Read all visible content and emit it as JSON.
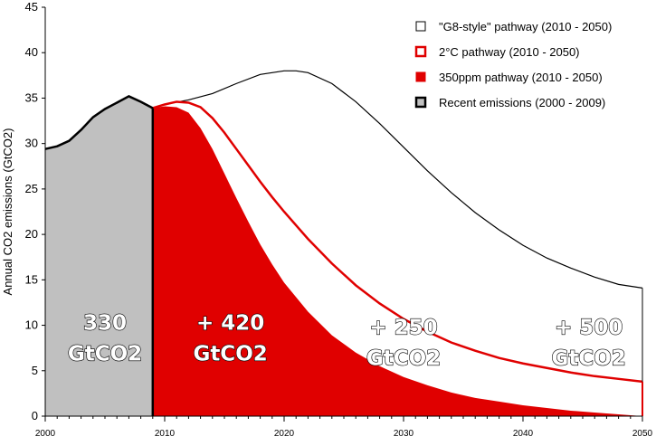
{
  "chart_data": {
    "type": "area",
    "ylabel": "Annual CO2 emissions (GtCO2)",
    "xlabel": "",
    "xlim": [
      2000,
      2050
    ],
    "ylim": [
      0,
      45
    ],
    "y_ticks": [
      0,
      5,
      10,
      15,
      20,
      25,
      30,
      35,
      40,
      45
    ],
    "x_ticks": [
      2000,
      2010,
      2020,
      2030,
      2040,
      2050
    ],
    "y_tick_labels": [
      "0",
      "5",
      "10",
      "15",
      "20",
      "25",
      "30",
      "35",
      "40",
      "45"
    ],
    "x_tick_labels": [
      "2000",
      "2010",
      "2020",
      "2030",
      "2040",
      "2050"
    ],
    "legend_position": "top-right",
    "series": [
      {
        "name": "\"G8-style\" pathway (2010 - 2050)",
        "color": "#000000",
        "fill": "none",
        "x": [
          2009,
          2010,
          2012,
          2014,
          2016,
          2018,
          2020,
          2021,
          2022,
          2024,
          2026,
          2028,
          2030,
          2032,
          2034,
          2036,
          2038,
          2040,
          2042,
          2044,
          2046,
          2048,
          2050
        ],
        "values": [
          33.9,
          34.3,
          34.8,
          35.5,
          36.6,
          37.6,
          38.0,
          38.0,
          37.8,
          36.6,
          34.6,
          32.2,
          29.6,
          27.0,
          24.6,
          22.4,
          20.5,
          18.8,
          17.4,
          16.3,
          15.3,
          14.5,
          14.1
        ]
      },
      {
        "name": "2°C pathway (2010 - 2050)",
        "color": "#e00000",
        "fill": "#ffffff",
        "x": [
          2009,
          2010,
          2011,
          2012,
          2013,
          2014,
          2015,
          2016,
          2017,
          2018,
          2019,
          2020,
          2022,
          2024,
          2026,
          2028,
          2030,
          2032,
          2034,
          2036,
          2038,
          2040,
          2042,
          2044,
          2046,
          2048,
          2050
        ],
        "values": [
          33.9,
          34.3,
          34.6,
          34.5,
          34.0,
          32.8,
          31.2,
          29.4,
          27.6,
          25.8,
          24.1,
          22.5,
          19.5,
          16.8,
          14.4,
          12.4,
          10.7,
          9.3,
          8.1,
          7.2,
          6.4,
          5.8,
          5.3,
          4.8,
          4.4,
          4.1,
          3.8
        ]
      },
      {
        "name": "350ppm pathway (2010 - 2050)",
        "color": "#e00000",
        "fill": "#e00000",
        "x": [
          2009,
          2010,
          2011,
          2012,
          2013,
          2014,
          2015,
          2016,
          2017,
          2018,
          2019,
          2020,
          2022,
          2024,
          2026,
          2028,
          2030,
          2032,
          2034,
          2036,
          2038,
          2040,
          2042,
          2044,
          2046,
          2048,
          2050
        ],
        "values": [
          33.9,
          34.1,
          34.0,
          33.4,
          31.7,
          29.4,
          26.7,
          24.0,
          21.4,
          18.9,
          16.7,
          14.7,
          11.5,
          8.9,
          7.0,
          5.5,
          4.3,
          3.4,
          2.6,
          2.0,
          1.6,
          1.2,
          0.9,
          0.6,
          0.4,
          0.2,
          0.0
        ]
      },
      {
        "name": "Recent emissions (2000 - 2009)",
        "color": "#000000",
        "fill": "#c0c0c0",
        "x": [
          2000,
          2001,
          2002,
          2003,
          2004,
          2005,
          2006,
          2007,
          2008,
          2009
        ],
        "values": [
          29.4,
          29.7,
          30.3,
          31.5,
          32.9,
          33.8,
          34.5,
          35.2,
          34.6,
          33.9
        ]
      }
    ],
    "annotations": [
      {
        "text_lines": [
          "330",
          "GtCO2"
        ],
        "x": 2005.0,
        "y": 9.5
      },
      {
        "text_lines": [
          "+ 420",
          "GtCO2"
        ],
        "x": 2015.5,
        "y": 9.5
      },
      {
        "text_lines": [
          "+ 250",
          "GtCO2"
        ],
        "x": 2030.0,
        "y": 9.0
      },
      {
        "text_lines": [
          "+ 500",
          "GtCO2"
        ],
        "x": 2045.5,
        "y": 9.0
      }
    ]
  }
}
